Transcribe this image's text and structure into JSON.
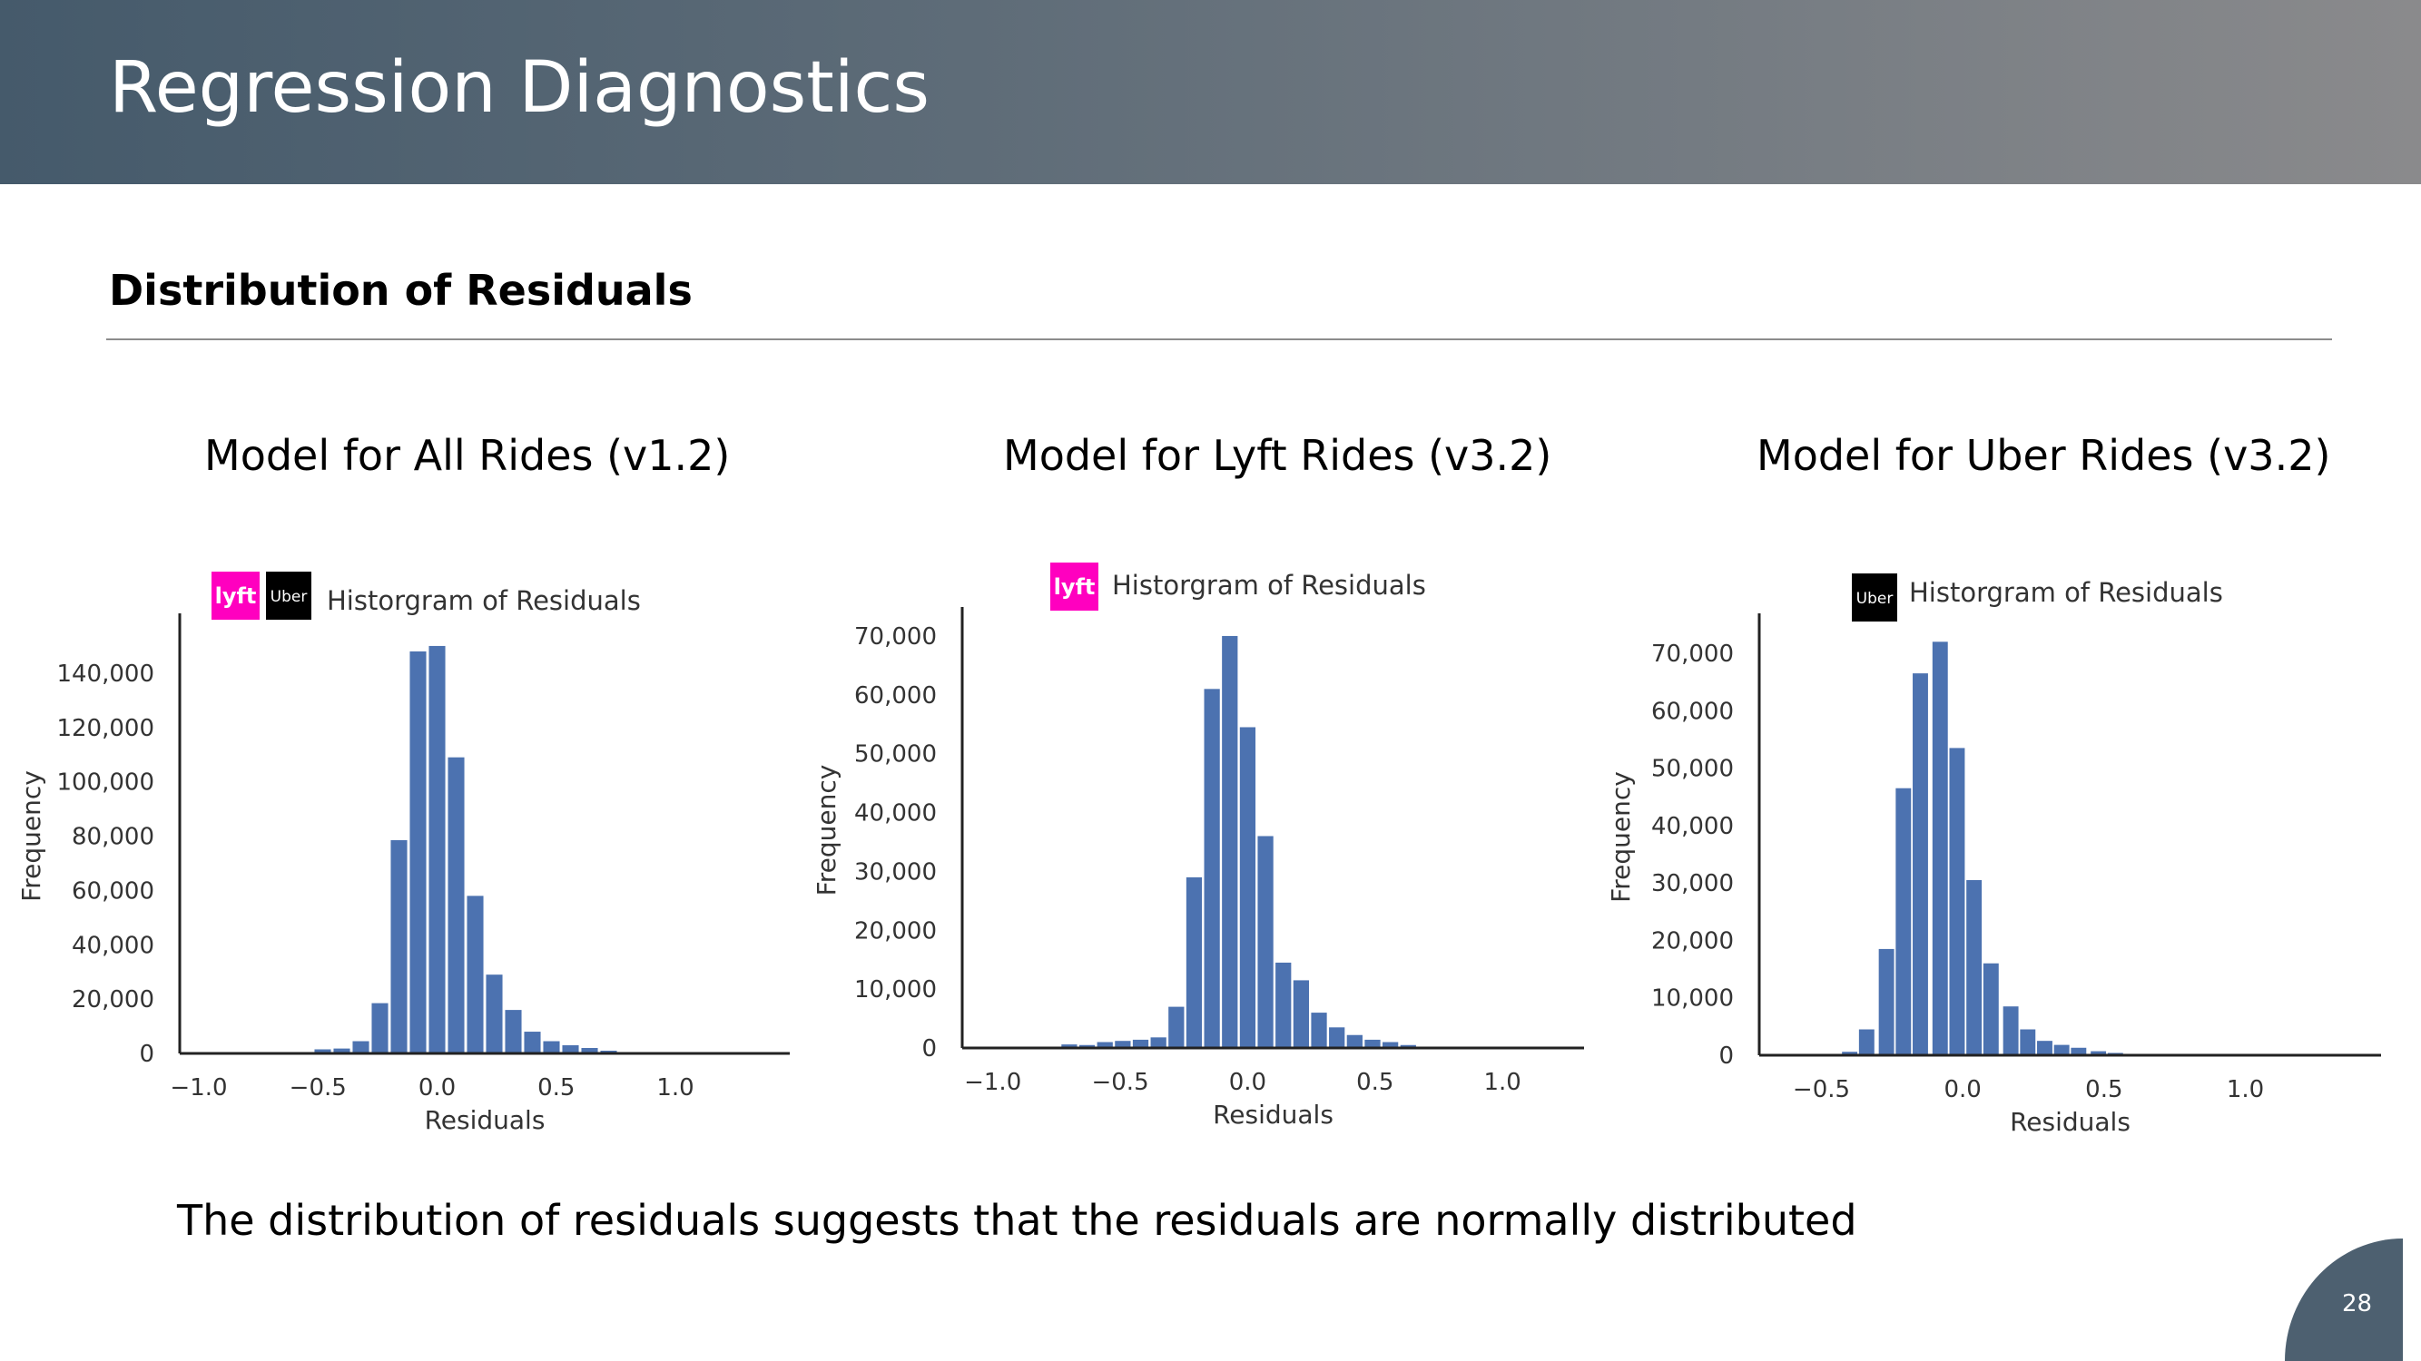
{
  "header": {
    "title": "Regression Diagnostics"
  },
  "section_title": "Distribution of Residuals",
  "models": [
    {
      "label": "Model for All Rides (v1.2)"
    },
    {
      "label": "Model for Lyft Rides (v3.2)"
    },
    {
      "label": "Model for Uber Rides (v3.2)"
    }
  ],
  "conclusion": "The distribution of residuals suggests that the residuals are normally distributed",
  "page_number": "28",
  "brand": {
    "lyft_text": "lyft",
    "uber_text": "Uber",
    "lyft_color": "#ff00bf",
    "uber_color": "#000000",
    "bar_color": "#4c72b0"
  },
  "chart_data": [
    {
      "type": "bar",
      "title": "Historgram of Residuals",
      "xlabel": "Residuals",
      "ylabel": "Frequency",
      "xlim": [
        -1.08,
        1.48
      ],
      "ylim": [
        0,
        160000
      ],
      "xticks": [
        -1.0,
        -0.5,
        0.0,
        0.5,
        1.0
      ],
      "xtick_labels": [
        "−1.0",
        "−0.5",
        "0.0",
        "0.5",
        "1.0"
      ],
      "yticks": [
        0,
        20000,
        40000,
        60000,
        80000,
        100000,
        120000,
        140000
      ],
      "ytick_labels": [
        "0",
        "20,000",
        "40,000",
        "60,000",
        "80,000",
        "100,000",
        "120,000",
        "140,000"
      ],
      "logos": [
        "lyft",
        "uber"
      ],
      "bin_width": 0.078,
      "bins": [
        {
          "x": -0.56,
          "value": 500
        },
        {
          "x": -0.48,
          "value": 1500
        },
        {
          "x": -0.4,
          "value": 1800
        },
        {
          "x": -0.32,
          "value": 4500
        },
        {
          "x": -0.24,
          "value": 18500
        },
        {
          "x": -0.16,
          "value": 78500
        },
        {
          "x": -0.08,
          "value": 148000
        },
        {
          "x": 0.0,
          "value": 150000
        },
        {
          "x": 0.08,
          "value": 109000
        },
        {
          "x": 0.16,
          "value": 58000
        },
        {
          "x": 0.24,
          "value": 29000
        },
        {
          "x": 0.32,
          "value": 16000
        },
        {
          "x": 0.4,
          "value": 8000
        },
        {
          "x": 0.48,
          "value": 4500
        },
        {
          "x": 0.56,
          "value": 3000
        },
        {
          "x": 0.64,
          "value": 2000
        },
        {
          "x": 0.72,
          "value": 1000
        }
      ]
    },
    {
      "type": "bar",
      "title": "Historgram of Residuals",
      "xlabel": "Residuals",
      "ylabel": "Frequency",
      "xlim": [
        -1.12,
        1.32
      ],
      "ylim": [
        0,
        74000
      ],
      "xticks": [
        -1.0,
        -0.5,
        0.0,
        0.5,
        1.0
      ],
      "xtick_labels": [
        "−1.0",
        "−0.5",
        "0.0",
        "0.5",
        "1.0"
      ],
      "yticks": [
        0,
        10000,
        20000,
        30000,
        40000,
        50000,
        60000,
        70000
      ],
      "ytick_labels": [
        "0",
        "10,000",
        "20,000",
        "30,000",
        "40,000",
        "50,000",
        "60,000",
        "70,000"
      ],
      "logos": [
        "lyft"
      ],
      "bin_width": 0.07,
      "bins": [
        {
          "x": -0.7,
          "value": 600
        },
        {
          "x": -0.63,
          "value": 500
        },
        {
          "x": -0.56,
          "value": 1000
        },
        {
          "x": -0.49,
          "value": 1200
        },
        {
          "x": -0.42,
          "value": 1400
        },
        {
          "x": -0.35,
          "value": 1800
        },
        {
          "x": -0.28,
          "value": 7000
        },
        {
          "x": -0.21,
          "value": 29000
        },
        {
          "x": -0.14,
          "value": 61000
        },
        {
          "x": -0.07,
          "value": 70000
        },
        {
          "x": 0.0,
          "value": 54500
        },
        {
          "x": 0.07,
          "value": 36000
        },
        {
          "x": 0.14,
          "value": 14500
        },
        {
          "x": 0.21,
          "value": 11500
        },
        {
          "x": 0.28,
          "value": 6000
        },
        {
          "x": 0.35,
          "value": 3500
        },
        {
          "x": 0.42,
          "value": 2200
        },
        {
          "x": 0.49,
          "value": 1400
        },
        {
          "x": 0.56,
          "value": 1000
        },
        {
          "x": 0.63,
          "value": 500
        }
      ]
    },
    {
      "type": "bar",
      "title": "Historgram of Residuals",
      "xlabel": "Residuals",
      "ylabel": "Frequency",
      "xlim": [
        -0.72,
        1.48
      ],
      "ylim": [
        0,
        76000
      ],
      "xticks": [
        -0.5,
        0.0,
        0.5,
        1.0
      ],
      "xtick_labels": [
        "−0.5",
        "0.0",
        "0.5",
        "1.0"
      ],
      "yticks": [
        0,
        10000,
        20000,
        30000,
        40000,
        50000,
        60000,
        70000
      ],
      "ytick_labels": [
        "0",
        "10,000",
        "20,000",
        "30,000",
        "40,000",
        "50,000",
        "60,000",
        "70,000"
      ],
      "logos": [
        "uber"
      ],
      "bin_width": 0.062,
      "bins": [
        {
          "x": -0.4,
          "value": 600
        },
        {
          "x": -0.34,
          "value": 4500
        },
        {
          "x": -0.27,
          "value": 18500
        },
        {
          "x": -0.21,
          "value": 46500
        },
        {
          "x": -0.15,
          "value": 66500
        },
        {
          "x": -0.08,
          "value": 72000
        },
        {
          "x": -0.02,
          "value": 53500
        },
        {
          "x": 0.04,
          "value": 30500
        },
        {
          "x": 0.1,
          "value": 16000
        },
        {
          "x": 0.17,
          "value": 8500
        },
        {
          "x": 0.23,
          "value": 4500
        },
        {
          "x": 0.29,
          "value": 2500
        },
        {
          "x": 0.35,
          "value": 1800
        },
        {
          "x": 0.41,
          "value": 1300
        },
        {
          "x": 0.48,
          "value": 700
        },
        {
          "x": 0.54,
          "value": 400
        }
      ]
    }
  ]
}
